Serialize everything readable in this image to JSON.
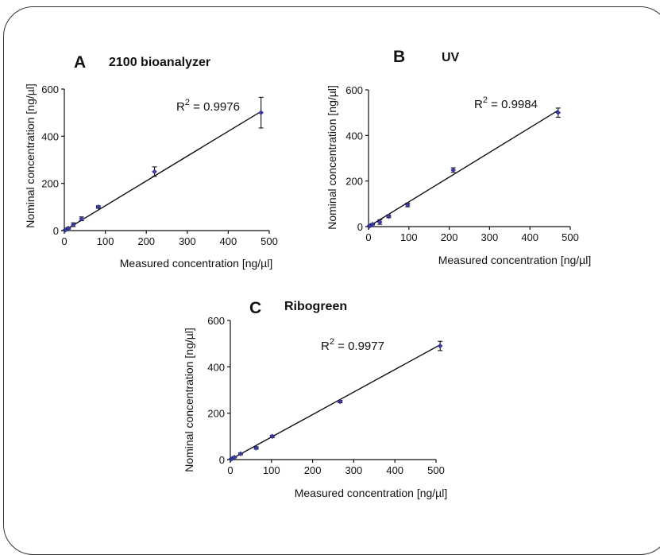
{
  "chart_data": [
    {
      "type": "scatter",
      "panel": "A",
      "title": "2100 bioanalyzer",
      "r2": "0.9976",
      "xlabel": "Measured concentration [ng/µl]",
      "ylabel": "Nominal concentration [ng/µl]",
      "xlim": [
        0,
        500
      ],
      "ylim": [
        0,
        600
      ],
      "xticks": [
        0,
        100,
        200,
        300,
        400,
        500
      ],
      "yticks": [
        0,
        200,
        400,
        600
      ],
      "fit": {
        "x": [
          0,
          480
        ],
        "y": [
          0,
          505
        ]
      },
      "points": [
        {
          "x": 2,
          "y": 2,
          "err": 2
        },
        {
          "x": 5,
          "y": 5,
          "err": 3
        },
        {
          "x": 10,
          "y": 10,
          "err": 4
        },
        {
          "x": 22,
          "y": 25,
          "err": 8
        },
        {
          "x": 42,
          "y": 50,
          "err": 8
        },
        {
          "x": 83,
          "y": 100,
          "err": 5
        },
        {
          "x": 220,
          "y": 250,
          "err": 20
        },
        {
          "x": 480,
          "y": 500,
          "err": 65
        }
      ]
    },
    {
      "type": "scatter",
      "panel": "B",
      "title": "UV",
      "r2": "0.9984",
      "xlabel": "Measured concentration [ng/µl]",
      "ylabel": "Nominal concentration [ng/µl]",
      "xlim": [
        0,
        500
      ],
      "ylim": [
        0,
        600
      ],
      "xticks": [
        0,
        100,
        200,
        300,
        400,
        500
      ],
      "yticks": [
        0,
        200,
        400,
        600
      ],
      "fit": {
        "x": [
          0,
          470
        ],
        "y": [
          0,
          510
        ]
      },
      "points": [
        {
          "x": 2,
          "y": 2,
          "err": 2
        },
        {
          "x": 5,
          "y": 5,
          "err": 3
        },
        {
          "x": 10,
          "y": 10,
          "err": 3
        },
        {
          "x": 28,
          "y": 20,
          "err": 10
        },
        {
          "x": 50,
          "y": 45,
          "err": 6
        },
        {
          "x": 97,
          "y": 95,
          "err": 8
        },
        {
          "x": 210,
          "y": 248,
          "err": 10
        },
        {
          "x": 470,
          "y": 500,
          "err": 20
        }
      ]
    },
    {
      "type": "scatter",
      "panel": "C",
      "title": "Ribogreen",
      "r2": "0.9977",
      "xlabel": "Measured concentration [ng/µl]",
      "ylabel": "Nominal concentration [ng/µl]",
      "xlim": [
        0,
        500
      ],
      "ylim": [
        0,
        600
      ],
      "xticks": [
        0,
        100,
        200,
        300,
        400,
        500
      ],
      "yticks": [
        0,
        200,
        400,
        600
      ],
      "fit": {
        "x": [
          0,
          510
        ],
        "y": [
          0,
          495
        ]
      },
      "points": [
        {
          "x": 2,
          "y": 2,
          "err": 2
        },
        {
          "x": 5,
          "y": 5,
          "err": 2
        },
        {
          "x": 10,
          "y": 10,
          "err": 3
        },
        {
          "x": 25,
          "y": 25,
          "err": 4
        },
        {
          "x": 63,
          "y": 50,
          "err": 5
        },
        {
          "x": 102,
          "y": 100,
          "err": 5
        },
        {
          "x": 267,
          "y": 250,
          "err": 5
        },
        {
          "x": 510,
          "y": 490,
          "err": 20
        }
      ]
    }
  ]
}
